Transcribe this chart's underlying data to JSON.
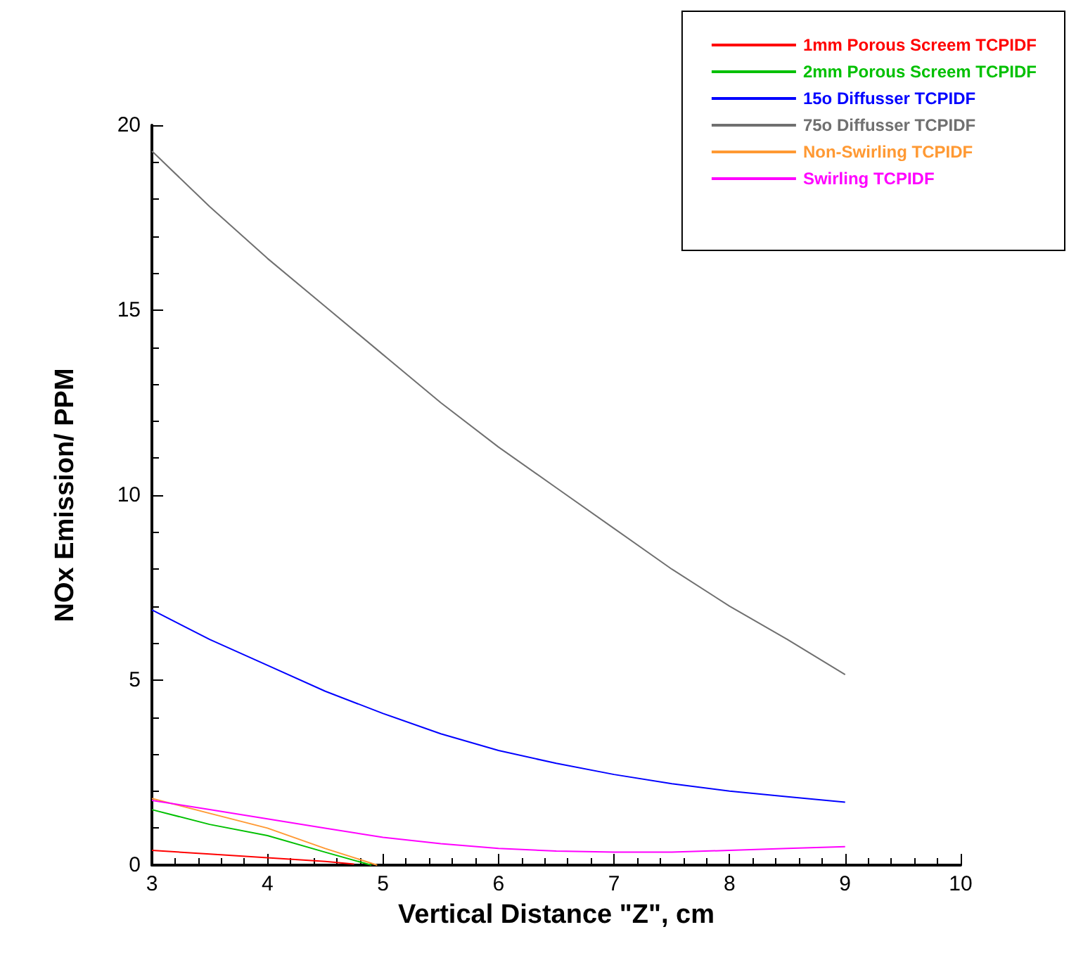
{
  "chart_data": {
    "type": "line",
    "xlabel": "Vertical Distance \"Z\", cm",
    "ylabel": "NOx Emission/ PPM",
    "xlim": [
      3,
      10
    ],
    "xticks": [
      3,
      4,
      5,
      6,
      7,
      8,
      9,
      10
    ],
    "ylim": [
      0,
      20
    ],
    "yticks": [
      0,
      5,
      10,
      15,
      20
    ],
    "grid": false,
    "legend": "top right",
    "marker": "none",
    "line_style": "solid",
    "series": [
      {
        "name": "1mm Porous Screem TCPIDF",
        "color": "#ff0000",
        "x": [
          3,
          3.5,
          4,
          4.5,
          4.75
        ],
        "values": [
          0.4,
          0.3,
          0.2,
          0.1,
          0.03
        ]
      },
      {
        "name": "2mm Porous Screem TCPIDF",
        "color": "#00c000",
        "x": [
          3,
          3.5,
          4,
          4.5,
          4.9
        ],
        "values": [
          1.5,
          1.1,
          0.8,
          0.35,
          0
        ]
      },
      {
        "name": "15o Diffusser TCPIDF",
        "color": "#0000ff",
        "x": [
          3,
          3.5,
          4,
          4.5,
          5,
          5.5,
          6,
          6.5,
          7,
          7.5,
          8,
          8.5,
          9
        ],
        "values": [
          6.9,
          6.1,
          5.4,
          4.7,
          4.1,
          3.55,
          3.1,
          2.75,
          2.45,
          2.2,
          2.0,
          1.85,
          1.7
        ]
      },
      {
        "name": "75o Diffusser TCPIDF",
        "color": "#707070",
        "x": [
          3,
          3.5,
          4,
          4.5,
          5,
          5.5,
          6,
          6.5,
          7,
          7.5,
          8,
          8.5,
          9
        ],
        "values": [
          19.3,
          17.8,
          16.4,
          15.1,
          13.8,
          12.5,
          11.3,
          10.2,
          9.1,
          8.0,
          7.0,
          6.1,
          5.15
        ]
      },
      {
        "name": "Non-Swirling TCPIDF",
        "color": "#ff9933",
        "x": [
          3,
          3.5,
          4,
          4.5,
          4.95
        ],
        "values": [
          1.8,
          1.4,
          1.0,
          0.45,
          0
        ]
      },
      {
        "name": "Swirling TCPIDF",
        "color": "#ff00ff",
        "x": [
          3,
          3.5,
          4,
          4.5,
          5,
          5.5,
          6,
          6.5,
          7,
          7.5,
          8,
          8.5,
          9
        ],
        "values": [
          1.75,
          1.5,
          1.25,
          1.0,
          0.75,
          0.58,
          0.45,
          0.38,
          0.35,
          0.35,
          0.4,
          0.45,
          0.5
        ]
      }
    ]
  }
}
